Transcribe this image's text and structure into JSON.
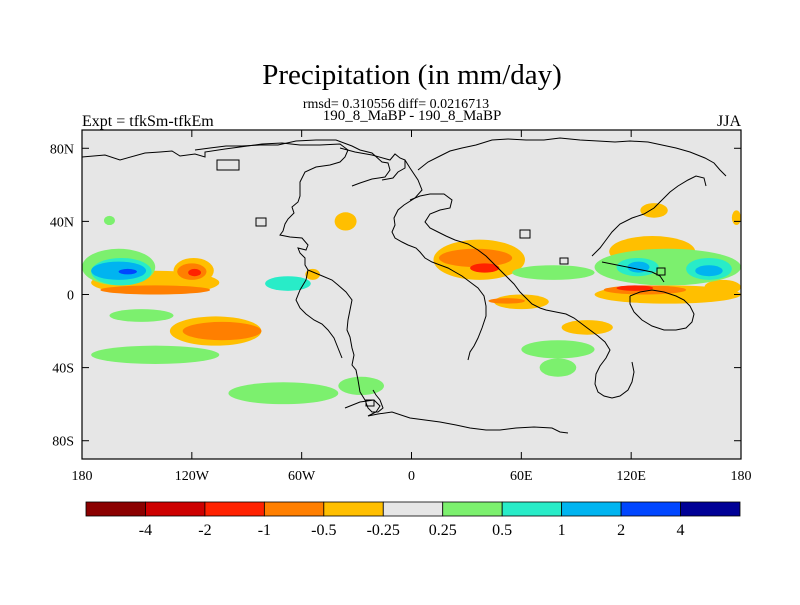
{
  "chart_data": {
    "type": "contour_map",
    "title": "Precipitation (in mm/day)",
    "stats_line": "rmsd= 0.310556 diff= 0.0216713",
    "subtitle_center": "190_8_MaBP - 190_8_MaBP",
    "subtitle_left": "Expt = tfkSm-tfkEm",
    "subtitle_right": "JJA",
    "x_ticks": [
      "180",
      "120W",
      "60W",
      "0",
      "60E",
      "120E",
      "180"
    ],
    "x_tick_values": [
      -180,
      -120,
      -60,
      0,
      60,
      120,
      180
    ],
    "y_ticks": [
      "80N",
      "40N",
      "0",
      "40S",
      "80S"
    ],
    "y_tick_values": [
      80,
      40,
      0,
      -40,
      -80
    ],
    "xlim": [
      -180,
      180
    ],
    "ylim": [
      -90,
      90
    ],
    "legend": {
      "colors": [
        "#8b0000",
        "#cd0000",
        "#ff2200",
        "#ff7f00",
        "#ffbf00",
        "#e6e6e6",
        "#7cf06e",
        "#28ecc8",
        "#00b4f0",
        "#0046ff",
        "#000096"
      ],
      "labels": [
        "-4",
        "-2",
        "-1",
        "-0.5",
        "-0.25",
        "0.25",
        "0.5",
        "1",
        "2",
        "4"
      ]
    },
    "background_color": "#e6e6e6",
    "fields": [
      {
        "level": "-0.25",
        "color": "#ffbf00",
        "regions": [
          {
            "lon": [
              -175,
              -105
            ],
            "lat": [
              0,
              13
            ]
          },
          {
            "lon": [
              -132,
              -82
            ],
            "lat": [
              -28,
              -12
            ]
          },
          {
            "lon": [
              -130,
              -108
            ],
            "lat": [
              6,
              20
            ]
          },
          {
            "lon": [
              -58,
              -50
            ],
            "lat": [
              8,
              14
            ]
          },
          {
            "lon": [
              -42,
              -30
            ],
            "lat": [
              35,
              45
            ]
          },
          {
            "lon": [
              12,
              62
            ],
            "lat": [
              8,
              30
            ]
          },
          {
            "lon": [
              45,
              75
            ],
            "lat": [
              -8,
              0
            ]
          },
          {
            "lon": [
              82,
              110
            ],
            "lat": [
              -22,
              -14
            ]
          },
          {
            "lon": [
              100,
              180
            ],
            "lat": [
              -5,
              5
            ]
          },
          {
            "lon": [
              108,
              155
            ],
            "lat": [
              15,
              32
            ]
          },
          {
            "lon": [
              125,
              140
            ],
            "lat": [
              42,
              50
            ]
          },
          {
            "lon": [
              160,
              180
            ],
            "lat": [
              0,
              8
            ]
          },
          {
            "lon": [
              175,
              180
            ],
            "lat": [
              38,
              46
            ]
          }
        ]
      },
      {
        "level": "-0.5",
        "color": "#ff7f00",
        "regions": [
          {
            "lon": [
              -170,
              -110
            ],
            "lat": [
              0,
              5
            ]
          },
          {
            "lon": [
              -125,
              -82
            ],
            "lat": [
              -25,
              -15
            ]
          },
          {
            "lon": [
              -128,
              -112
            ],
            "lat": [
              8,
              17
            ]
          },
          {
            "lon": [
              15,
              55
            ],
            "lat": [
              15,
              25
            ]
          },
          {
            "lon": [
              42,
              62
            ],
            "lat": [
              -5,
              -2
            ]
          },
          {
            "lon": [
              105,
              150
            ],
            "lat": [
              0,
              5
            ]
          }
        ]
      },
      {
        "level": "-1",
        "color": "#ff2200",
        "regions": [
          {
            "lon": [
              -122,
              -115
            ],
            "lat": [
              10,
              14
            ]
          },
          {
            "lon": [
              32,
              48
            ],
            "lat": [
              12,
              17
            ]
          },
          {
            "lon": [
              112,
              132
            ],
            "lat": [
              2,
              5
            ]
          }
        ]
      },
      {
        "level": "0.25",
        "color": "#7cf06e",
        "regions": [
          {
            "lon": [
              -180,
              -140
            ],
            "lat": [
              5,
              25
            ]
          },
          {
            "lon": [
              -165,
              -130
            ],
            "lat": [
              -15,
              -8
            ]
          },
          {
            "lon": [
              -175,
              -105
            ],
            "lat": [
              -38,
              -28
            ]
          },
          {
            "lon": [
              -40,
              -15
            ],
            "lat": [
              -55,
              -45
            ]
          },
          {
            "lon": [
              -100,
              -40
            ],
            "lat": [
              -60,
              -48
            ]
          },
          {
            "lon": [
              -168,
              -162
            ],
            "lat": [
              38,
              43
            ]
          },
          {
            "lon": [
              55,
              100
            ],
            "lat": [
              8,
              16
            ]
          },
          {
            "lon": [
              100,
              180
            ],
            "lat": [
              5,
              25
            ]
          },
          {
            "lon": [
              60,
              100
            ],
            "lat": [
              -35,
              -25
            ]
          },
          {
            "lon": [
              70,
              90
            ],
            "lat": [
              -45,
              -35
            ]
          }
        ]
      },
      {
        "level": "0.5",
        "color": "#28ecc8",
        "regions": [
          {
            "lon": [
              -175,
              -142
            ],
            "lat": [
              5,
              20
            ]
          },
          {
            "lon": [
              -80,
              -55
            ],
            "lat": [
              2,
              10
            ]
          },
          {
            "lon": [
              112,
              135
            ],
            "lat": [
              10,
              20
            ]
          },
          {
            "lon": [
              150,
              175
            ],
            "lat": [
              8,
              20
            ]
          }
        ]
      },
      {
        "level": "1",
        "color": "#00b4f0",
        "regions": [
          {
            "lon": [
              -175,
              -145
            ],
            "lat": [
              8,
              18
            ]
          },
          {
            "lon": [
              118,
              130
            ],
            "lat": [
              12,
              18
            ]
          },
          {
            "lon": [
              155,
              170
            ],
            "lat": [
              10,
              16
            ]
          }
        ]
      },
      {
        "level": "2",
        "color": "#0046ff",
        "regions": [
          {
            "lon": [
              -160,
              -150
            ],
            "lat": [
              11,
              14
            ]
          }
        ]
      }
    ]
  }
}
